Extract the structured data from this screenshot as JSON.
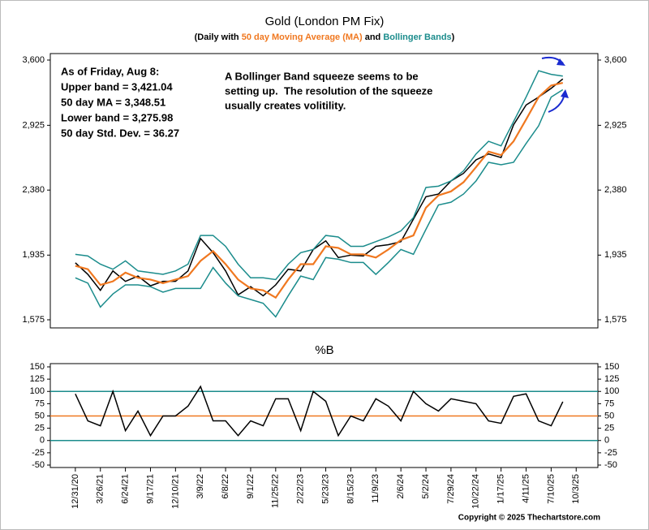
{
  "chart_data": [
    {
      "type": "line",
      "title": "Gold (London PM Fix)",
      "subtitle": [
        {
          "text": "(Daily with ",
          "color": "#000000"
        },
        {
          "text": "50 day Moving Average (MA)",
          "color": "#f07820"
        },
        {
          "text": " and ",
          "color": "#000000"
        },
        {
          "text": "Bollinger Bands",
          "color": "#1b8c8c"
        },
        {
          "text": ")",
          "color": "#000000"
        }
      ],
      "annotations": [
        {
          "color": "#1a2bd0",
          "lines": [
            "As of Friday, Aug 8:",
            "Upper band = 3,421.04",
            "50 day MA = 3,348.51",
            "Lower band = 3,275.98",
            "50 day Std. Dev. = 36.27"
          ]
        },
        {
          "color": "#1a2bd0",
          "lines": [
            "A Bollinger Band squeeze seems to be",
            "setting up.  The resolution of the squeeze",
            "usually creates volitility."
          ]
        }
      ],
      "x": [
        0,
        30,
        60,
        90,
        120,
        150,
        180,
        210,
        240,
        270,
        300,
        330,
        360,
        390,
        420,
        450,
        480,
        510,
        540,
        570,
        600,
        630,
        660,
        690,
        720,
        750,
        780,
        810,
        840,
        870,
        900,
        930,
        960,
        990,
        1020,
        1050,
        1080,
        1110,
        1140,
        1168
      ],
      "xlim": [
        -60,
        1252
      ],
      "ylim": [
        1575,
        3600
      ],
      "log_scale": true,
      "yticks": [
        {
          "value": 1575,
          "label": "1,575"
        },
        {
          "value": 1935,
          "label": "1,935"
        },
        {
          "value": 2380,
          "label": "2,380"
        },
        {
          "value": 2925,
          "label": "2,925"
        },
        {
          "value": 3600,
          "label": "3,600"
        }
      ],
      "series": [
        {
          "color": "#000000",
          "values": [
            1888,
            1820,
            1730,
            1840,
            1780,
            1810,
            1755,
            1780,
            1780,
            1840,
            2040,
            1950,
            1840,
            1705,
            1750,
            1700,
            1760,
            1850,
            1840,
            1970,
            2025,
            1920,
            1935,
            1930,
            1990,
            2000,
            2020,
            2170,
            2330,
            2350,
            2450,
            2510,
            2620,
            2670,
            2640,
            2930,
            3120,
            3200,
            3290,
            3390
          ]
        },
        {
          "color": "#f07820",
          "values": [
            1870,
            1850,
            1760,
            1780,
            1830,
            1800,
            1790,
            1770,
            1790,
            1810,
            1900,
            1960,
            1880,
            1790,
            1740,
            1730,
            1690,
            1790,
            1880,
            1880,
            1990,
            1980,
            1940,
            1940,
            1920,
            1970,
            2030,
            2060,
            2250,
            2340,
            2370,
            2440,
            2560,
            2690,
            2660,
            2780,
            2980,
            3200,
            3320,
            3348.51
          ]
        },
        {
          "color": "#1b8c8c",
          "values": [
            1940,
            1930,
            1880,
            1850,
            1900,
            1840,
            1830,
            1820,
            1840,
            1880,
            2060,
            2060,
            1990,
            1880,
            1800,
            1800,
            1790,
            1880,
            1950,
            1970,
            2060,
            2050,
            1990,
            1990,
            2020,
            2050,
            2090,
            2180,
            2400,
            2410,
            2450,
            2530,
            2670,
            2780,
            2740,
            2960,
            3200,
            3480,
            3440,
            3421.04
          ]
        },
        {
          "color": "#1b8c8c",
          "values": [
            1800,
            1770,
            1640,
            1710,
            1760,
            1760,
            1750,
            1720,
            1740,
            1740,
            1740,
            1860,
            1770,
            1700,
            1680,
            1660,
            1590,
            1700,
            1810,
            1790,
            1920,
            1910,
            1890,
            1890,
            1820,
            1890,
            1970,
            1940,
            2100,
            2270,
            2290,
            2350,
            2450,
            2600,
            2580,
            2600,
            2760,
            2920,
            3200,
            3275.98
          ]
        }
      ]
    },
    {
      "type": "line",
      "title": "%B",
      "x": [
        0,
        30,
        60,
        90,
        120,
        150,
        180,
        210,
        240,
        270,
        300,
        330,
        360,
        390,
        420,
        450,
        480,
        510,
        540,
        570,
        600,
        630,
        660,
        690,
        720,
        750,
        780,
        810,
        840,
        870,
        900,
        930,
        960,
        990,
        1020,
        1050,
        1080,
        1110,
        1140,
        1168
      ],
      "xlim": [
        -60,
        1252
      ],
      "xticks": [
        {
          "value": 0,
          "label": "12/31/20"
        },
        {
          "value": 60,
          "label": "3/26/21"
        },
        {
          "value": 120,
          "label": "6/24/21"
        },
        {
          "value": 180,
          "label": "9/17/21"
        },
        {
          "value": 240,
          "label": "12/10/21"
        },
        {
          "value": 300,
          "label": "3/9/22"
        },
        {
          "value": 360,
          "label": "6/8/22"
        },
        {
          "value": 420,
          "label": "9/1/22"
        },
        {
          "value": 480,
          "label": "11/25/22"
        },
        {
          "value": 540,
          "label": "2/22/23"
        },
        {
          "value": 600,
          "label": "5/23/23"
        },
        {
          "value": 660,
          "label": "8/15/23"
        },
        {
          "value": 720,
          "label": "11/9/23"
        },
        {
          "value": 780,
          "label": "2/6/24"
        },
        {
          "value": 840,
          "label": "5/2/24"
        },
        {
          "value": 900,
          "label": "7/29/24"
        },
        {
          "value": 960,
          "label": "10/22/24"
        },
        {
          "value": 1020,
          "label": "1/17/25"
        },
        {
          "value": 1080,
          "label": "4/11/25"
        },
        {
          "value": 1140,
          "label": "7/10/25"
        },
        {
          "value": 1200,
          "label": "10/3/25"
        }
      ],
      "ylim": [
        -50,
        150
      ],
      "yticks": [
        -50,
        -25,
        0,
        25,
        50,
        75,
        100,
        125,
        150
      ],
      "reference_lines": [
        {
          "value": 100,
          "color": "#1b8c8c"
        },
        {
          "value": 50,
          "color": "#f07820"
        },
        {
          "value": 0,
          "color": "#1b8c8c"
        }
      ],
      "series": [
        {
          "color": "#000000",
          "values": [
            95,
            40,
            30,
            100,
            20,
            60,
            10,
            50,
            50,
            70,
            110,
            40,
            40,
            10,
            40,
            30,
            85,
            85,
            20,
            100,
            80,
            10,
            50,
            40,
            85,
            70,
            40,
            100,
            75,
            60,
            85,
            80,
            75,
            40,
            35,
            90,
            95,
            40,
            30,
            79
          ]
        }
      ]
    }
  ],
  "footer": "Copyright © 2025 Thechartstore.com"
}
